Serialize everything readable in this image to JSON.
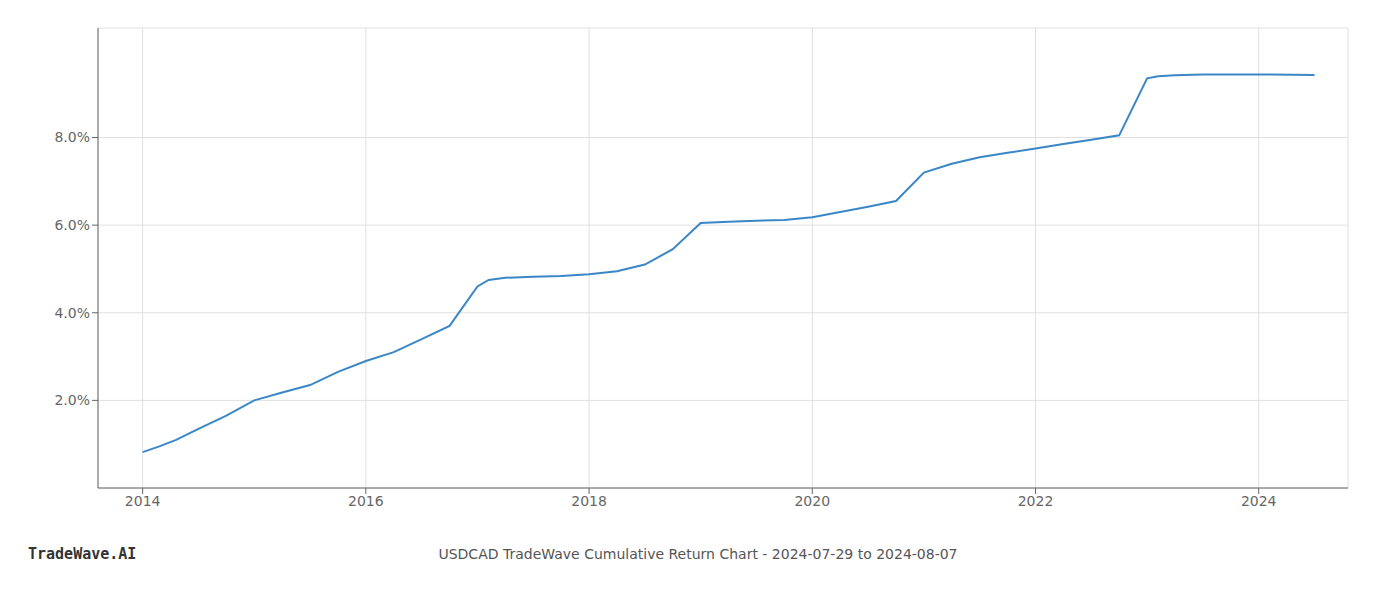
{
  "chart_data": {
    "type": "line",
    "title": "USDCAD TradeWave Cumulative Return Chart - 2024-07-29 to 2024-08-07",
    "annotations": [
      "TradeWave.AI"
    ],
    "color": "#3a87c8",
    "grid": true,
    "x": [
      2014.0,
      2014.15,
      2014.3,
      2014.5,
      2014.75,
      2015.0,
      2015.25,
      2015.5,
      2015.75,
      2016.0,
      2016.25,
      2016.5,
      2016.75,
      2017.0,
      2017.1,
      2017.25,
      2017.5,
      2017.75,
      2018.0,
      2018.25,
      2018.5,
      2018.75,
      2019.0,
      2019.25,
      2019.5,
      2019.75,
      2020.0,
      2020.25,
      2020.5,
      2020.75,
      2021.0,
      2021.25,
      2021.5,
      2021.75,
      2022.0,
      2022.25,
      2022.5,
      2022.75,
      2023.0,
      2023.1,
      2023.25,
      2023.5,
      2024.0,
      2024.5
    ],
    "values": [
      0.82,
      0.95,
      1.1,
      1.35,
      1.65,
      2.0,
      2.18,
      2.35,
      2.65,
      2.9,
      3.1,
      3.4,
      3.7,
      4.6,
      4.75,
      4.8,
      4.82,
      4.84,
      4.88,
      4.95,
      5.1,
      5.45,
      6.05,
      6.08,
      6.1,
      6.12,
      6.18,
      6.3,
      6.42,
      6.55,
      7.2,
      7.4,
      7.55,
      7.65,
      7.75,
      7.85,
      7.95,
      8.05,
      9.35,
      9.4,
      9.42,
      9.44,
      9.44,
      9.43
    ],
    "xlim": [
      2013.6,
      2024.8
    ],
    "xticks": [
      2014,
      2016,
      2018,
      2020,
      2022,
      2024
    ],
    "ylim": [
      0.0,
      10.5
    ],
    "yticks": [
      {
        "value": 2.0,
        "label": "2.0%"
      },
      {
        "value": 4.0,
        "label": "4.0%"
      },
      {
        "value": 6.0,
        "label": "6.0%"
      },
      {
        "value": 8.0,
        "label": "8.0%"
      }
    ]
  }
}
